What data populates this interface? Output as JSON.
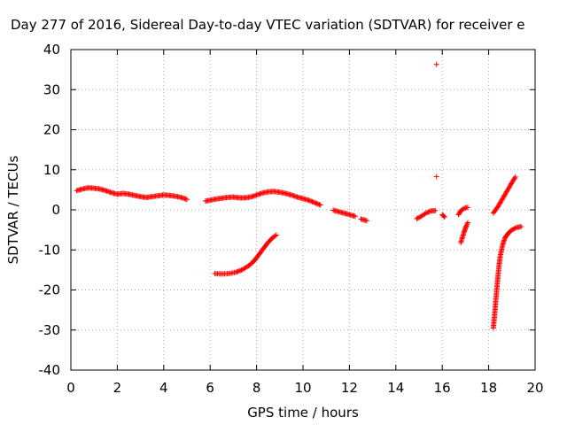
{
  "chart_data": {
    "type": "scatter",
    "title": "Day 277 of 2016, Sidereal Day-to-day VTEC variation (SDTVAR) for receiver e",
    "xlabel": "GPS time / hours",
    "ylabel": "SDTVAR / TECUs",
    "xlim": [
      0,
      20
    ],
    "ylim": [
      -40,
      40
    ],
    "xticks": [
      0,
      2,
      4,
      6,
      8,
      10,
      12,
      14,
      16,
      18,
      20
    ],
    "yticks": [
      -40,
      -30,
      -20,
      -10,
      0,
      10,
      20,
      30,
      40
    ],
    "grid": true,
    "marker": "+",
    "marker_color": "#ff0000",
    "series": [
      {
        "name": "SDTVAR",
        "segments": [
          [
            [
              0.25,
              4.8
            ],
            [
              0.5,
              5.2
            ],
            [
              0.75,
              5.5
            ],
            [
              1.0,
              5.4
            ],
            [
              1.25,
              5.2
            ],
            [
              1.5,
              4.8
            ],
            [
              1.75,
              4.3
            ],
            [
              2.0,
              3.9
            ],
            [
              2.25,
              4.1
            ],
            [
              2.5,
              3.9
            ],
            [
              2.75,
              3.6
            ],
            [
              3.0,
              3.3
            ],
            [
              3.25,
              3.1
            ],
            [
              3.5,
              3.3
            ],
            [
              3.75,
              3.5
            ],
            [
              4.0,
              3.7
            ],
            [
              4.25,
              3.6
            ],
            [
              4.5,
              3.4
            ],
            [
              4.75,
              3.1
            ],
            [
              5.0,
              2.6
            ]
          ],
          [
            [
              5.8,
              2.2
            ],
            [
              6.0,
              2.4
            ],
            [
              6.25,
              2.7
            ],
            [
              6.5,
              2.9
            ],
            [
              6.75,
              3.1
            ],
            [
              7.0,
              3.2
            ],
            [
              7.25,
              3.0
            ],
            [
              7.5,
              3.0
            ],
            [
              7.75,
              3.2
            ],
            [
              8.0,
              3.7
            ],
            [
              8.25,
              4.2
            ],
            [
              8.5,
              4.5
            ],
            [
              8.75,
              4.6
            ],
            [
              9.0,
              4.4
            ],
            [
              9.25,
              4.1
            ],
            [
              9.5,
              3.7
            ],
            [
              9.75,
              3.2
            ],
            [
              10.0,
              2.8
            ],
            [
              10.25,
              2.4
            ],
            [
              10.5,
              1.8
            ],
            [
              10.75,
              1.2
            ]
          ],
          [
            [
              11.3,
              -0.1
            ],
            [
              11.5,
              -0.4
            ],
            [
              11.75,
              -0.8
            ],
            [
              12.0,
              -1.2
            ],
            [
              12.25,
              -1.6
            ]
          ],
          [
            [
              12.5,
              -2.3
            ],
            [
              12.75,
              -2.7
            ]
          ],
          [
            [
              14.9,
              -2.2
            ],
            [
              15.1,
              -1.6
            ],
            [
              15.3,
              -0.8
            ],
            [
              15.5,
              -0.3
            ],
            [
              15.7,
              -0.2
            ]
          ],
          [
            [
              16.0,
              -1.2
            ],
            [
              16.1,
              -1.8
            ]
          ],
          [
            [
              16.7,
              -1.2
            ],
            [
              16.8,
              -0.2
            ],
            [
              16.9,
              0.2
            ],
            [
              17.0,
              0.5
            ],
            [
              17.1,
              0.6
            ]
          ],
          [
            [
              16.8,
              -8.2
            ],
            [
              16.85,
              -7.2
            ],
            [
              16.9,
              -6.3
            ],
            [
              16.95,
              -5.4
            ],
            [
              17.0,
              -4.6
            ],
            [
              17.05,
              -3.8
            ],
            [
              17.1,
              -3.2
            ]
          ],
          [
            [
              6.2,
              -15.9
            ],
            [
              6.5,
              -16.0
            ],
            [
              6.8,
              -15.9
            ],
            [
              7.1,
              -15.6
            ],
            [
              7.4,
              -14.9
            ],
            [
              7.7,
              -13.8
            ],
            [
              7.9,
              -12.7
            ],
            [
              8.1,
              -11.2
            ],
            [
              8.3,
              -9.6
            ],
            [
              8.5,
              -8.1
            ],
            [
              8.7,
              -6.9
            ],
            [
              8.85,
              -6.3
            ]
          ],
          [
            [
              18.2,
              -0.8
            ],
            [
              18.4,
              0.8
            ],
            [
              18.6,
              2.8
            ],
            [
              18.8,
              4.8
            ],
            [
              19.0,
              6.8
            ],
            [
              19.15,
              8.2
            ]
          ],
          [
            [
              18.2,
              -29.5
            ],
            [
              18.25,
              -26.5
            ],
            [
              18.3,
              -23.2
            ],
            [
              18.35,
              -19.8
            ],
            [
              18.4,
              -16.5
            ],
            [
              18.45,
              -13.7
            ],
            [
              18.5,
              -11.5
            ],
            [
              18.6,
              -8.8
            ],
            [
              18.7,
              -7.0
            ],
            [
              18.85,
              -5.8
            ],
            [
              19.0,
              -5.0
            ],
            [
              19.2,
              -4.4
            ],
            [
              19.4,
              -4.2
            ]
          ]
        ],
        "isolated_points": [
          [
            15.75,
            36.3
          ],
          [
            15.75,
            8.3
          ]
        ]
      }
    ]
  }
}
